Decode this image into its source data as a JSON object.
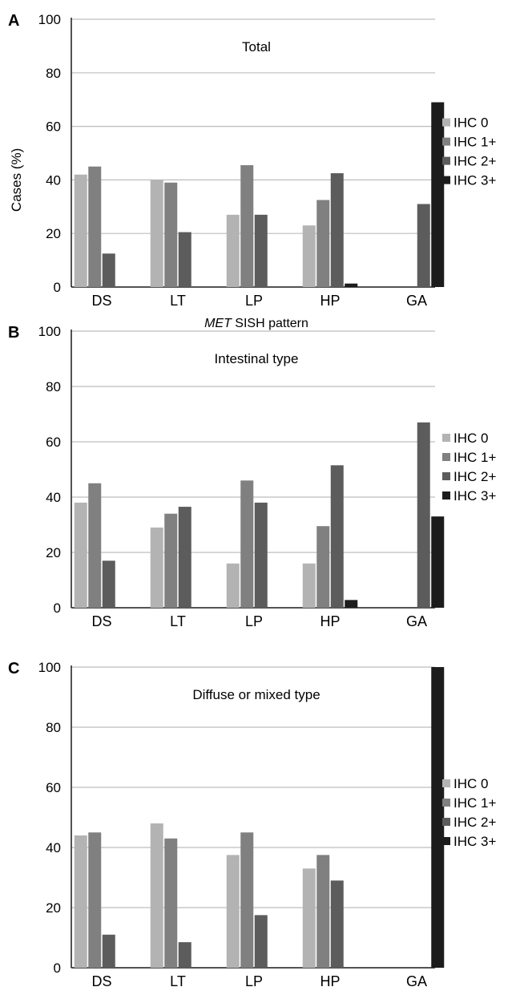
{
  "chart_data": [
    {
      "type": "bar",
      "panel_label": "A",
      "title": "Total",
      "ylabel": "Cases (%)",
      "xlabel_italic": "MET",
      "xlabel_rest": " SISH pattern",
      "ylim": [
        0,
        100
      ],
      "yticks": [
        "0",
        "20",
        "40",
        "60",
        "80",
        "100"
      ],
      "grid": "horizontal",
      "legend_position": "right",
      "categories": [
        "DS",
        "LT",
        "LP",
        "HP",
        "GA"
      ],
      "series": [
        {
          "name": "IHC 0",
          "color": "#b3b3b3",
          "values": [
            42,
            40,
            27,
            23,
            0
          ]
        },
        {
          "name": "IHC 1+",
          "color": "#808080",
          "values": [
            45,
            39,
            45.5,
            32.5,
            0
          ]
        },
        {
          "name": "IHC 2+",
          "color": "#5c5c5c",
          "values": [
            12.5,
            20.5,
            27,
            42.5,
            31
          ]
        },
        {
          "name": "IHC 3+",
          "color": "#1c1c1c",
          "values": [
            0,
            0,
            0,
            1.3,
            69
          ]
        }
      ]
    },
    {
      "type": "bar",
      "panel_label": "B",
      "title": "Intestinal type",
      "ylim": [
        0,
        100
      ],
      "yticks": [
        "0",
        "20",
        "40",
        "60",
        "80",
        "100"
      ],
      "grid": "horizontal",
      "legend_position": "right",
      "categories": [
        "DS",
        "LT",
        "LP",
        "HP",
        "GA"
      ],
      "series": [
        {
          "name": "IHC 0",
          "color": "#b3b3b3",
          "values": [
            38,
            29,
            16,
            16,
            0
          ]
        },
        {
          "name": "IHC 1+",
          "color": "#808080",
          "values": [
            45,
            34,
            46,
            29.5,
            0
          ]
        },
        {
          "name": "IHC 2+",
          "color": "#5c5c5c",
          "values": [
            17,
            36.5,
            38,
            51.5,
            67
          ]
        },
        {
          "name": "IHC 3+",
          "color": "#1c1c1c",
          "values": [
            0,
            0,
            0,
            2.8,
            33
          ]
        }
      ]
    },
    {
      "type": "bar",
      "panel_label": "C",
      "title": "Diffuse or mixed type",
      "ylim": [
        0,
        100
      ],
      "yticks": [
        "0",
        "20",
        "40",
        "60",
        "80",
        "100"
      ],
      "grid": "horizontal",
      "legend_position": "right",
      "categories": [
        "DS",
        "LT",
        "LP",
        "HP",
        "GA"
      ],
      "series": [
        {
          "name": "IHC 0",
          "color": "#b3b3b3",
          "values": [
            44,
            48,
            37.5,
            33,
            0
          ]
        },
        {
          "name": "IHC 1+",
          "color": "#808080",
          "values": [
            45,
            43,
            45,
            37.5,
            0
          ]
        },
        {
          "name": "IHC 2+",
          "color": "#5c5c5c",
          "values": [
            11,
            8.5,
            17.5,
            29,
            0
          ]
        },
        {
          "name": "IHC 3+",
          "color": "#1c1c1c",
          "values": [
            0,
            0,
            0,
            0,
            100
          ]
        }
      ]
    }
  ]
}
